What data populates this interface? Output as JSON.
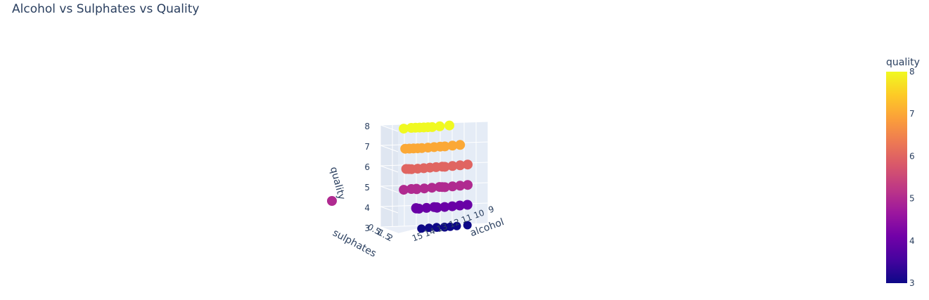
{
  "chart_data": {
    "type": "scatter3d",
    "title": "Alcohol vs Sulphates vs Quality",
    "axes": {
      "x": {
        "label": "alcohol",
        "ticks": [
          "9",
          "10",
          "11",
          "12",
          "13",
          "14",
          "15"
        ]
      },
      "y": {
        "label": "sulphates",
        "ticks": [
          "0.5",
          "1",
          "1.5",
          "2"
        ]
      },
      "z": {
        "label": "quality",
        "ticks": [
          "3",
          "4",
          "5",
          "6",
          "7",
          "8"
        ],
        "range": [
          3,
          8
        ]
      }
    },
    "colorbar": {
      "title": "quality",
      "ticks": [
        "3",
        "4",
        "5",
        "6",
        "7",
        "8"
      ],
      "range": [
        3,
        8
      ],
      "colors": [
        "#0d0887",
        "#46039f",
        "#7201a8",
        "#9c179e",
        "#bd3786",
        "#d8576b",
        "#ed7953",
        "#fb9f3a",
        "#fdca26",
        "#f0f921"
      ]
    },
    "series": [
      {
        "quality": 3,
        "alcohol": [
          9.0,
          9.8,
          10.2,
          10.5,
          11.0,
          11.5,
          12.0,
          12.5,
          13.0
        ],
        "sulphates": [
          0.5,
          0.55,
          0.6,
          0.65,
          0.55,
          0.6,
          0.5,
          0.55,
          0.6
        ]
      },
      {
        "quality": 4,
        "alcohol": [
          9.0,
          9.5,
          10.0,
          10.5,
          11.0,
          11.5,
          12.0,
          12.5,
          13.0,
          13.5,
          14.0
        ],
        "sulphates": [
          0.5,
          0.55,
          0.6,
          0.65,
          0.7,
          0.6,
          0.55,
          0.6,
          0.65,
          0.6,
          0.5
        ]
      },
      {
        "quality": 5,
        "alcohol": [
          8.5,
          9.0,
          9.5,
          10.0,
          10.5,
          11.0,
          11.5,
          12.0,
          12.5,
          13.0,
          13.5,
          14.0,
          15.0
        ],
        "sulphates": [
          0.6,
          0.65,
          0.7,
          0.75,
          0.7,
          0.65,
          0.7,
          0.75,
          0.8,
          0.7,
          0.7,
          0.75,
          2.0
        ]
      },
      {
        "quality": 6,
        "alcohol": [
          8.5,
          9.0,
          9.5,
          10.0,
          10.5,
          11.0,
          11.5,
          12.0,
          12.5,
          13.0,
          13.5,
          14.0
        ],
        "sulphates": [
          0.6,
          0.65,
          0.7,
          0.75,
          0.7,
          0.72,
          0.74,
          0.76,
          0.78,
          0.8,
          0.75,
          0.7
        ]
      },
      {
        "quality": 7,
        "alcohol": [
          9.0,
          9.5,
          10.0,
          10.5,
          11.0,
          11.5,
          12.0,
          12.5,
          13.0,
          13.5,
          14.0
        ],
        "sulphates": [
          0.65,
          0.7,
          0.75,
          0.74,
          0.76,
          0.78,
          0.8,
          0.78,
          0.76,
          0.74,
          0.72
        ]
      },
      {
        "quality": 8,
        "alcohol": [
          9.8,
          10.5,
          11.0,
          11.5,
          12.0,
          12.5,
          13.0,
          13.5,
          14.0
        ],
        "sulphates": [
          0.7,
          0.75,
          0.8,
          0.78,
          0.76,
          0.74,
          0.72,
          0.7,
          0.75
        ]
      }
    ]
  }
}
